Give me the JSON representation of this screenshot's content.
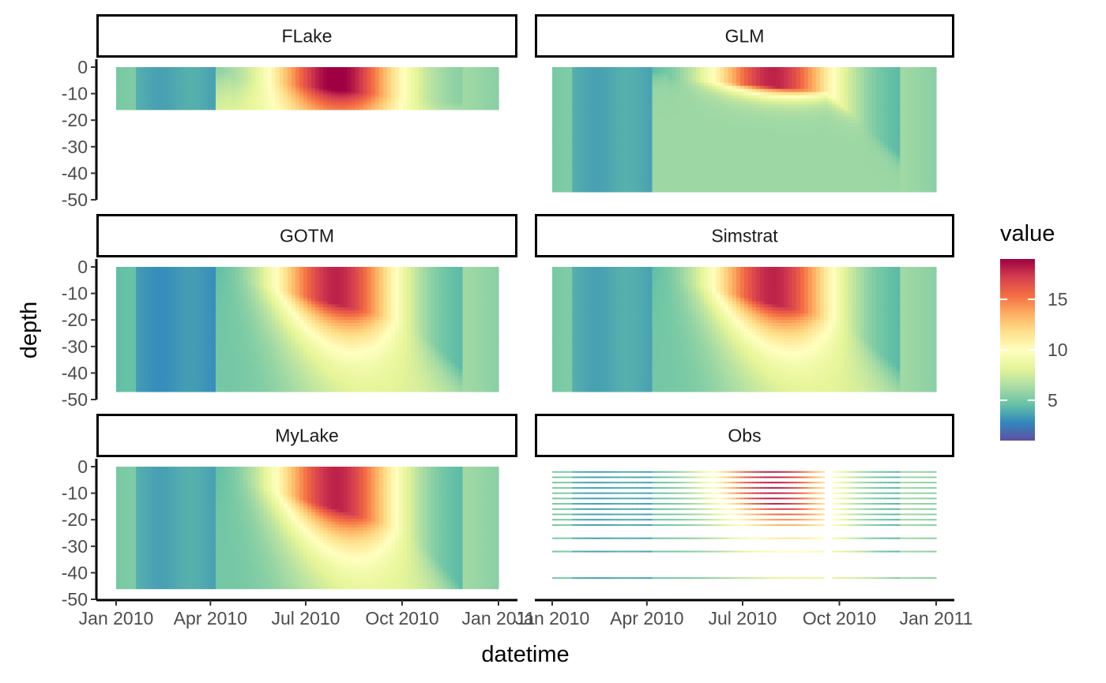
{
  "chart_data": {
    "type": "heatmap",
    "layout": "facet grid, 3 rows x 2 columns",
    "xlabel": "datetime",
    "ylabel": "depth",
    "x_tick_labels": [
      "Jan 2010",
      "Apr 2010",
      "Jul 2010",
      "Oct 2010",
      "Jan 2011"
    ],
    "x_tick_dates": [
      "2010-01-01",
      "2010-04-01",
      "2010-07-01",
      "2010-10-01",
      "2011-01-01"
    ],
    "xlim": [
      "2010-01-01",
      "2011-01-01"
    ],
    "y_ticks": [
      0,
      -10,
      -20,
      -30,
      -40,
      -50
    ],
    "ylim": [
      -50,
      0
    ],
    "grid": false,
    "legend": {
      "title": "value",
      "position": "right",
      "ticks": [
        5,
        10,
        15
      ],
      "range": [
        1,
        19
      ],
      "palette": "Spectral (reversed)",
      "colors": [
        "#5e4fa2",
        "#3288bd",
        "#66c2a5",
        "#abdda4",
        "#e6f598",
        "#ffffbf",
        "#fee08b",
        "#fdae61",
        "#f46d43",
        "#d53e4f",
        "#9e0142"
      ]
    },
    "panels": [
      {
        "name": "FLake",
        "row": 1,
        "col": 1,
        "max_depth": -16,
        "profile": "shallow",
        "x_axis_visible": false,
        "y_axis_visible": true
      },
      {
        "name": "GLM",
        "row": 1,
        "col": 2,
        "max_depth": -47,
        "profile": "glm",
        "x_axis_visible": false,
        "y_axis_visible": false
      },
      {
        "name": "GOTM",
        "row": 2,
        "col": 1,
        "max_depth": -47,
        "profile": "gotm",
        "x_axis_visible": false,
        "y_axis_visible": true
      },
      {
        "name": "Simstrat",
        "row": 2,
        "col": 2,
        "max_depth": -47,
        "profile": "simstrat",
        "x_axis_visible": false,
        "y_axis_visible": false
      },
      {
        "name": "MyLake",
        "row": 3,
        "col": 1,
        "max_depth": -46,
        "profile": "mylake",
        "x_axis_visible": true,
        "y_axis_visible": true
      },
      {
        "name": "Obs",
        "row": 3,
        "col": 2,
        "profile": "obs",
        "obs_depths": [
          -2,
          -4,
          -6,
          -8,
          -10,
          -12,
          -14,
          -16,
          -18,
          -20,
          -22,
          -27,
          -32,
          -42
        ],
        "obs_gap_date": "2010-09-21",
        "x_axis_visible": true,
        "y_axis_visible": false
      }
    ]
  }
}
